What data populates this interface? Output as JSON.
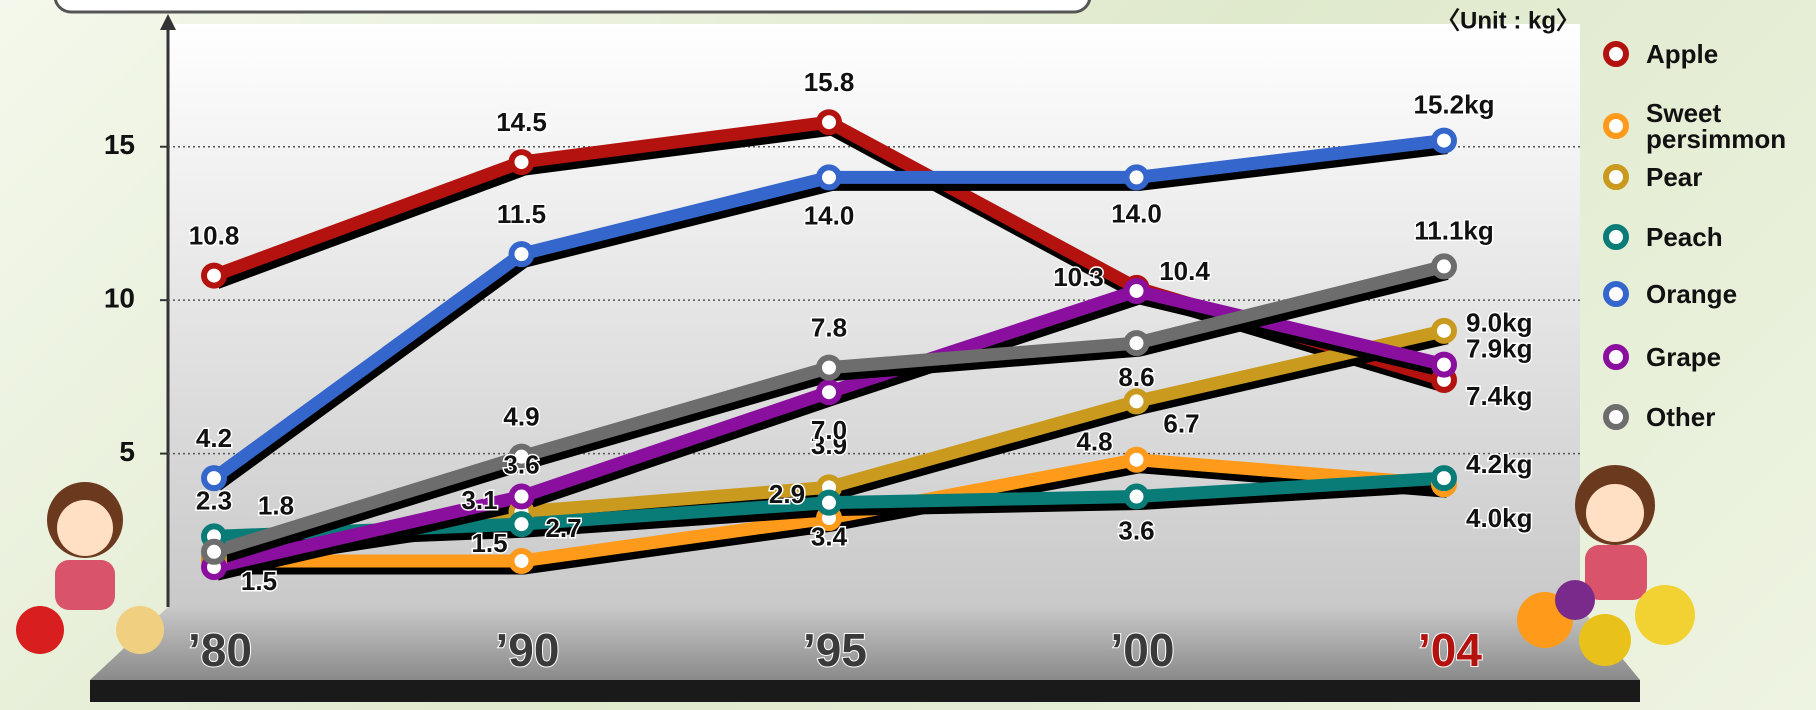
{
  "chart_data": {
    "type": "line",
    "unit_label": "〈Unit : kg〉",
    "categories": [
      "’80",
      "’90",
      "’95",
      "’00",
      "’04"
    ],
    "ylim": [
      0,
      19
    ],
    "yticks": [
      5,
      10,
      15
    ],
    "grid": true,
    "legend": "right",
    "series": [
      {
        "name": "Apple",
        "color": "#b3120f",
        "values": [
          10.8,
          14.5,
          15.8,
          10.4,
          7.4
        ],
        "value_labels": [
          "10.8",
          "14.5",
          "15.8",
          "10.4",
          "7.4kg"
        ]
      },
      {
        "name": "Sweet persimmon",
        "color": "#ff9a1a",
        "values": [
          1.5,
          1.5,
          2.9,
          4.8,
          4.0
        ],
        "value_labels": [
          "1.5",
          "1.5",
          "2.9",
          "4.8",
          "4.0kg"
        ]
      },
      {
        "name": "Pear",
        "color": "#c99a1e",
        "values": [
          1.6,
          3.1,
          3.9,
          6.7,
          9.0
        ],
        "value_labels": [
          null,
          "3.1",
          "3.9",
          "6.7",
          "9.0kg"
        ]
      },
      {
        "name": "Peach",
        "color": "#0a7c78",
        "values": [
          2.3,
          2.7,
          3.4,
          3.6,
          4.2
        ],
        "value_labels": [
          "2.3",
          "2.7",
          "3.4",
          "3.6",
          "4.2kg"
        ]
      },
      {
        "name": "Orange",
        "color": "#3466cc",
        "values": [
          4.2,
          11.5,
          14.0,
          14.0,
          15.2
        ],
        "value_labels": [
          "4.2",
          "11.5",
          "14.0",
          "14.0",
          "15.2kg"
        ]
      },
      {
        "name": "Grape",
        "color": "#8a0f9e",
        "values": [
          1.3,
          3.6,
          7.0,
          10.3,
          7.9
        ],
        "value_labels": [
          null,
          "3.6",
          "7.0",
          "10.3",
          "7.9kg"
        ]
      },
      {
        "name": "Other",
        "color": "#6d6d6d",
        "values": [
          1.8,
          4.9,
          7.8,
          8.6,
          11.1
        ],
        "value_labels": [
          "1.8",
          "4.9",
          "7.8",
          "8.6",
          "11.1kg"
        ]
      }
    ]
  }
}
